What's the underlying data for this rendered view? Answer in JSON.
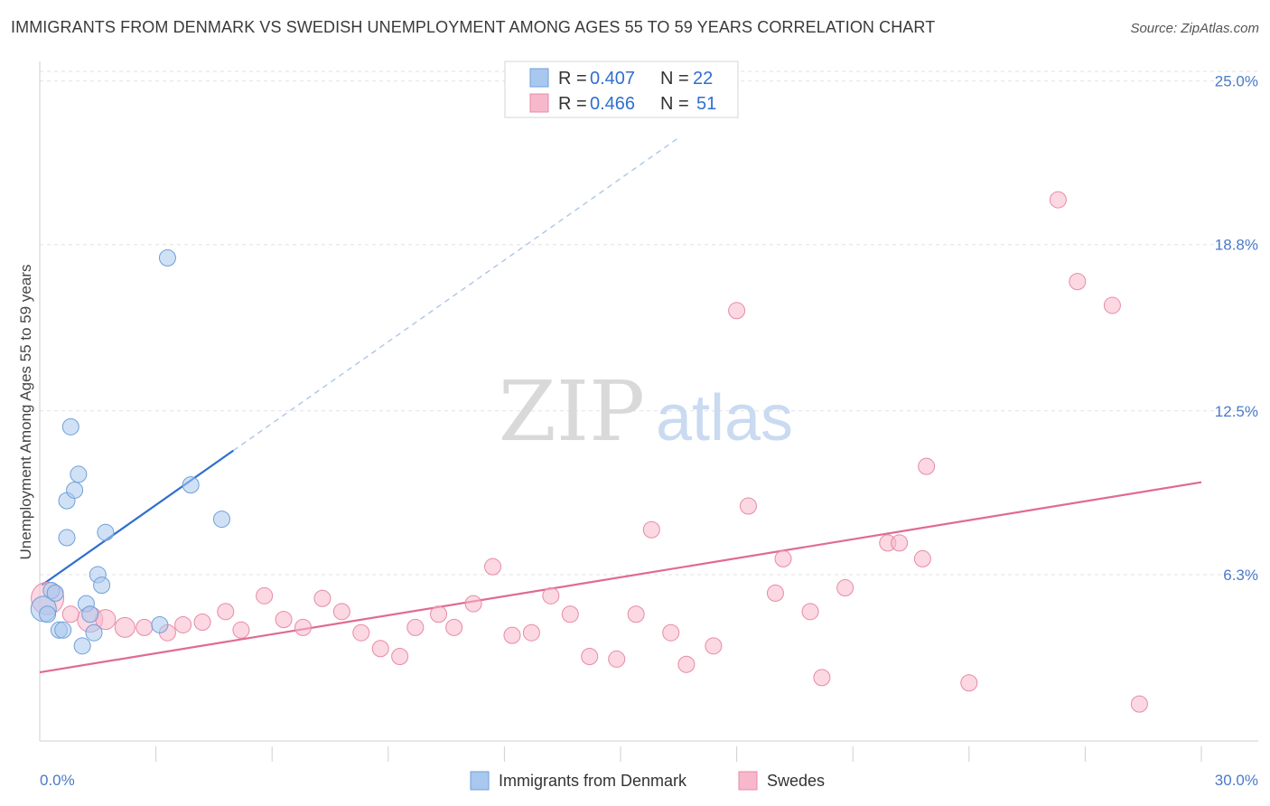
{
  "title": "IMMIGRANTS FROM DENMARK VS SWEDISH UNEMPLOYMENT AMONG AGES 55 TO 59 YEARS CORRELATION CHART",
  "source": "Source: ZipAtlas.com",
  "watermark": {
    "zip": "ZIP",
    "atlas": "atlas"
  },
  "legend": {
    "rows": [
      {
        "r_label": "R =",
        "r_value": "0.407",
        "n_label": "N =",
        "n_value": "22",
        "color": "#a9c8ef"
      },
      {
        "r_label": "R =",
        "r_value": "0.466",
        "n_label": "N =",
        "n_value": "51",
        "color": "#f7b8cb"
      }
    ]
  },
  "bottom_legend": [
    {
      "label": "Immigrants from Denmark",
      "color": "#a9c8ef"
    },
    {
      "label": "Swedes",
      "color": "#f7b8cb"
    }
  ],
  "chart_data": {
    "type": "scatter",
    "xlabel": "",
    "ylabel": "Unemployment Among Ages 55 to 59 years",
    "xlim": [
      0,
      30
    ],
    "ylim": [
      0,
      25.5
    ],
    "y_ticks": [
      {
        "value": 6.3,
        "label": "6.3%"
      },
      {
        "value": 12.5,
        "label": "12.5%"
      },
      {
        "value": 18.8,
        "label": "18.8%"
      },
      {
        "value": 25.0,
        "label": "25.0%"
      }
    ],
    "x_tick_labels": {
      "min": "0.0%",
      "max": "30.0%"
    },
    "grid": true,
    "series": [
      {
        "name": "Immigrants from Denmark",
        "color": "#a9c8ef",
        "stroke": "#6f9fd8",
        "trend_color": "#2f6fd0",
        "trend": {
          "x0": 0.05,
          "y0": 5.9,
          "x1": 5.0,
          "y1": 11.0,
          "x_dash_end": 16.5
        },
        "points": [
          {
            "x": 0.1,
            "y": 5.0,
            "s": 14
          },
          {
            "x": 0.3,
            "y": 5.7,
            "s": 9
          },
          {
            "x": 0.4,
            "y": 5.6,
            "s": 9
          },
          {
            "x": 0.5,
            "y": 4.2,
            "s": 9
          },
          {
            "x": 0.6,
            "y": 4.2,
            "s": 9
          },
          {
            "x": 0.7,
            "y": 7.7,
            "s": 9
          },
          {
            "x": 0.7,
            "y": 9.1,
            "s": 9
          },
          {
            "x": 0.8,
            "y": 11.9,
            "s": 9
          },
          {
            "x": 0.9,
            "y": 9.5,
            "s": 9
          },
          {
            "x": 1.0,
            "y": 10.1,
            "s": 9
          },
          {
            "x": 1.1,
            "y": 3.6,
            "s": 9
          },
          {
            "x": 1.2,
            "y": 5.2,
            "s": 9
          },
          {
            "x": 1.3,
            "y": 4.8,
            "s": 9
          },
          {
            "x": 1.4,
            "y": 4.1,
            "s": 9
          },
          {
            "x": 1.5,
            "y": 6.3,
            "s": 9
          },
          {
            "x": 1.6,
            "y": 5.9,
            "s": 9
          },
          {
            "x": 1.7,
            "y": 7.9,
            "s": 9
          },
          {
            "x": 3.1,
            "y": 4.4,
            "s": 9
          },
          {
            "x": 3.3,
            "y": 18.3,
            "s": 9
          },
          {
            "x": 3.9,
            "y": 9.7,
            "s": 9
          },
          {
            "x": 4.7,
            "y": 8.4,
            "s": 9
          },
          {
            "x": 0.2,
            "y": 4.8,
            "s": 9
          }
        ]
      },
      {
        "name": "Swedes",
        "color": "#f7b8cb",
        "stroke": "#e88aa8",
        "trend_color": "#e06a93",
        "trend": {
          "x0": 0.0,
          "y0": 2.6,
          "x1": 30.0,
          "y1": 9.8
        },
        "points": [
          {
            "x": 0.2,
            "y": 5.4,
            "s": 18
          },
          {
            "x": 1.3,
            "y": 4.6,
            "s": 14
          },
          {
            "x": 1.7,
            "y": 4.6,
            "s": 11
          },
          {
            "x": 2.2,
            "y": 4.3,
            "s": 11
          },
          {
            "x": 2.7,
            "y": 4.3,
            "s": 9
          },
          {
            "x": 3.3,
            "y": 4.1,
            "s": 9
          },
          {
            "x": 3.7,
            "y": 4.4,
            "s": 9
          },
          {
            "x": 4.2,
            "y": 4.5,
            "s": 9
          },
          {
            "x": 4.8,
            "y": 4.9,
            "s": 9
          },
          {
            "x": 5.2,
            "y": 4.2,
            "s": 9
          },
          {
            "x": 5.8,
            "y": 5.5,
            "s": 9
          },
          {
            "x": 6.3,
            "y": 4.6,
            "s": 9
          },
          {
            "x": 6.8,
            "y": 4.3,
            "s": 9
          },
          {
            "x": 7.3,
            "y": 5.4,
            "s": 9
          },
          {
            "x": 7.8,
            "y": 4.9,
            "s": 9
          },
          {
            "x": 8.3,
            "y": 4.1,
            "s": 9
          },
          {
            "x": 8.8,
            "y": 3.5,
            "s": 9
          },
          {
            "x": 9.3,
            "y": 3.2,
            "s": 9
          },
          {
            "x": 9.7,
            "y": 4.3,
            "s": 9
          },
          {
            "x": 10.3,
            "y": 4.8,
            "s": 9
          },
          {
            "x": 10.7,
            "y": 4.3,
            "s": 9
          },
          {
            "x": 11.2,
            "y": 5.2,
            "s": 9
          },
          {
            "x": 11.7,
            "y": 6.6,
            "s": 9
          },
          {
            "x": 12.2,
            "y": 4.0,
            "s": 9
          },
          {
            "x": 12.7,
            "y": 4.1,
            "s": 9
          },
          {
            "x": 13.2,
            "y": 5.5,
            "s": 9
          },
          {
            "x": 13.7,
            "y": 4.8,
            "s": 9
          },
          {
            "x": 14.2,
            "y": 3.2,
            "s": 9
          },
          {
            "x": 14.9,
            "y": 3.1,
            "s": 9
          },
          {
            "x": 15.4,
            "y": 4.8,
            "s": 9
          },
          {
            "x": 15.8,
            "y": 8.0,
            "s": 9
          },
          {
            "x": 16.3,
            "y": 4.1,
            "s": 9
          },
          {
            "x": 16.7,
            "y": 2.9,
            "s": 9
          },
          {
            "x": 17.4,
            "y": 3.6,
            "s": 9
          },
          {
            "x": 18.0,
            "y": 16.3,
            "s": 9
          },
          {
            "x": 18.3,
            "y": 8.9,
            "s": 9
          },
          {
            "x": 19.2,
            "y": 6.9,
            "s": 9
          },
          {
            "x": 19.0,
            "y": 5.6,
            "s": 9
          },
          {
            "x": 19.9,
            "y": 4.9,
            "s": 9
          },
          {
            "x": 20.2,
            "y": 2.4,
            "s": 9
          },
          {
            "x": 20.8,
            "y": 5.8,
            "s": 9
          },
          {
            "x": 21.9,
            "y": 7.5,
            "s": 9
          },
          {
            "x": 22.2,
            "y": 7.5,
            "s": 9
          },
          {
            "x": 22.8,
            "y": 6.9,
            "s": 9
          },
          {
            "x": 22.9,
            "y": 10.4,
            "s": 9
          },
          {
            "x": 24.0,
            "y": 2.2,
            "s": 9
          },
          {
            "x": 26.3,
            "y": 20.5,
            "s": 9
          },
          {
            "x": 26.8,
            "y": 17.4,
            "s": 9
          },
          {
            "x": 27.7,
            "y": 16.5,
            "s": 9
          },
          {
            "x": 28.4,
            "y": 1.4,
            "s": 9
          },
          {
            "x": 0.8,
            "y": 4.8,
            "s": 9
          }
        ]
      }
    ]
  }
}
